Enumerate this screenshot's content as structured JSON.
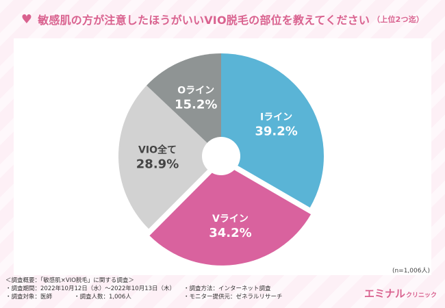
{
  "title": "敏感肌の方が注意したほうがいいVIO脱毛の部位を教えてください",
  "title_suffix": "（上位2つ迄）",
  "sample_size": "(n=1,006人)",
  "footer": {
    "heading": "＜調査概要：「敏感肌×VIO脱毛」に関する調査＞",
    "period": "・調査期間：2022年10月12日（水）～2022年10月13日（木）",
    "method": "・調査方法：インターネット調査",
    "target": "・調査対象：医師",
    "count": "・調査人数：1,006人",
    "provider": "・モニター提供元：ゼネラルリサーチ"
  },
  "brand": {
    "main": "エミナル",
    "small": "クリニック"
  },
  "colors": {
    "accent": "#d9628f",
    "background": "#fdf0f6"
  },
  "icon": "heart-icon",
  "chart_data": {
    "type": "pie",
    "slices": [
      {
        "label": "Iライン",
        "value": 39.2,
        "display": "39.2%",
        "color": "#5ab4d6",
        "text_color": "#ffffff"
      },
      {
        "label": "Vライン",
        "value": 34.2,
        "display": "34.2%",
        "color": "#d9629e",
        "text_color": "#ffffff"
      },
      {
        "label": "VIO全て",
        "value": 28.9,
        "display": "28.9%",
        "color": "#d2d2d2",
        "text_color": "#444444"
      },
      {
        "label": "Oライン",
        "value": 15.2,
        "display": "15.2%",
        "color": "#8f9494",
        "text_color": "#ffffff"
      }
    ],
    "start": "12 o'clock, clockwise",
    "donut": true,
    "exploded": "Vライン"
  }
}
